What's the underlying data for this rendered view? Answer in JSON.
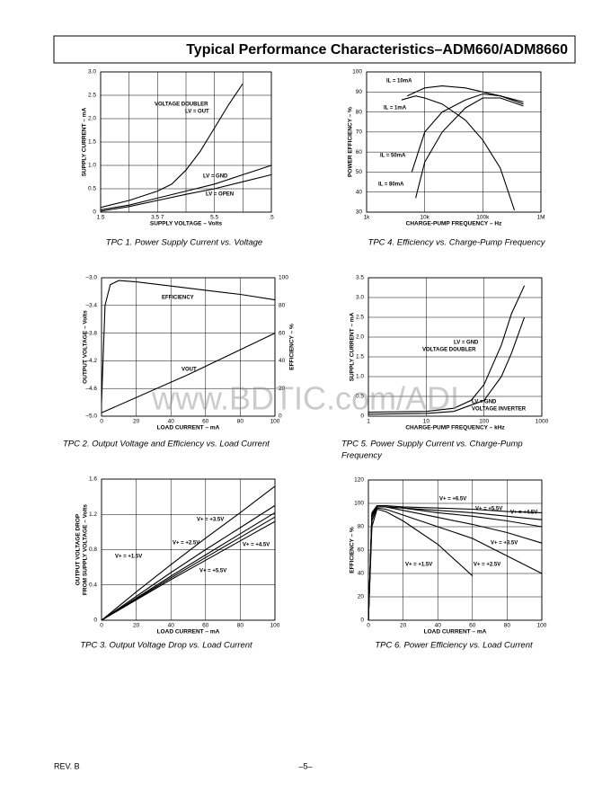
{
  "header": {
    "title": "Typical Performance Characteristics–ADM660/ADM8660"
  },
  "footer": {
    "revision": "REV. B",
    "page": "–5–"
  },
  "watermark": "www.BDTIC.com/ADI",
  "chart_data": [
    {
      "type": "line",
      "caption": [
        "TPC 1.  Power Supply Current vs. Voltage"
      ],
      "xlabel": "SUPPLY VOLTAGE – Volts",
      "ylabel": "SUPPLY CURRENT – mA",
      "color": "#000000",
      "grid": true,
      "xlim": [
        1.5,
        7.5
      ],
      "ylim": [
        0,
        3
      ],
      "xticks": [
        1.5,
        {
          "value": 3.5,
          "label": "3.5 7"
        },
        5.5,
        {
          "value": 7.5,
          "label": ".5"
        }
      ],
      "xminor": [
        2.5,
        4.5,
        6.5
      ],
      "yticks": [
        0,
        0.5,
        {
          "value": 1,
          "label": "1.0"
        },
        1.5,
        {
          "value": 2,
          "label": "2.0"
        },
        2.5,
        {
          "value": 3,
          "label": "3.0"
        }
      ],
      "annotations": [
        "VOLTAGE DOUBLER",
        "LV = OUT",
        "LV = GND",
        "LV = OPEN"
      ],
      "series": [
        {
          "x": [
            1.5,
            2.5,
            3.5,
            4,
            4.5,
            5,
            5.5,
            6,
            6.5
          ],
          "values": [
            0.1,
            0.25,
            0.45,
            0.6,
            0.9,
            1.3,
            1.8,
            2.3,
            2.75
          ]
        },
        {
          "x": [
            1.5,
            2.5,
            3.5,
            4.5,
            5.5,
            6.5,
            7.5
          ],
          "values": [
            0.05,
            0.15,
            0.3,
            0.45,
            0.6,
            0.8,
            1
          ]
        },
        {
          "x": [
            1.5,
            2.5,
            3.5,
            4.5,
            5.5,
            6.5,
            7.5
          ],
          "values": [
            0.02,
            0.12,
            0.25,
            0.38,
            0.5,
            0.65,
            0.8
          ]
        }
      ]
    },
    {
      "type": "line",
      "caption": [
        "TPC 2.  Output Voltage and Efficiency vs. Load Current"
      ],
      "xlabel": "LOAD CURRENT – mA",
      "ylabel": "OUTPUT VOLTAGE – Volts",
      "y2label": "EFFICIENCY – %",
      "color": "#000000",
      "grid": true,
      "xlim": [
        0,
        100
      ],
      "ylim": [
        -5,
        -3
      ],
      "y2lim": [
        0,
        100
      ],
      "xticks": [
        0,
        20,
        40,
        60,
        80,
        100
      ],
      "yticks": [
        {
          "value": -3,
          "label": "–3.0"
        },
        {
          "value": -3.4,
          "label": "–3.4"
        },
        {
          "value": -3.8,
          "label": "–3.8"
        },
        {
          "value": -4.2,
          "label": "–4.2"
        },
        {
          "value": -4.6,
          "label": "–4.6"
        },
        {
          "value": -5,
          "label": "–5.0"
        }
      ],
      "y2ticks": [
        0,
        20,
        40,
        60,
        80,
        100
      ],
      "annotations": [
        "EFFICIENCY",
        "VOUT"
      ],
      "series": [
        {
          "x": [
            0,
            2,
            5,
            10,
            20,
            40,
            60,
            80,
            100
          ],
          "values": [
            10,
            80,
            95,
            98,
            97,
            94,
            91,
            88,
            84
          ],
          "axis": "y2"
        },
        {
          "x": [
            0,
            50,
            100
          ],
          "values": [
            -4.95,
            -4.4,
            -3.8
          ]
        }
      ]
    },
    {
      "type": "line",
      "caption": [
        "TPC 3.  Output Voltage Drop vs. Load Current"
      ],
      "xlabel": "LOAD CURRENT – mA",
      "ylabel": [
        "OUTPUT VOLTAGE DROP",
        "FROM SUPPLY VOLTAGE – Volts"
      ],
      "color": "#000000",
      "grid": true,
      "xlim": [
        0,
        100
      ],
      "ylim": [
        0,
        1.6
      ],
      "xticks": [
        0,
        20,
        40,
        60,
        80,
        100
      ],
      "yticks": [
        0,
        0.4,
        0.8,
        1.2,
        1.6
      ],
      "annotations": [
        "V+ = +1.5V",
        "V+ = +2.5V",
        "V+ = +3.5V",
        "V+ = +4.5V",
        "V+ = +5.5V"
      ],
      "x": [
        0,
        20,
        40,
        60,
        80,
        100
      ],
      "series": [
        {
          "values": [
            0,
            0.32,
            0.63,
            0.93,
            1.22,
            1.52
          ]
        },
        {
          "values": [
            0,
            0.27,
            0.54,
            0.8,
            1.05,
            1.3
          ]
        },
        {
          "values": [
            0,
            0.25,
            0.5,
            0.74,
            0.98,
            1.22
          ]
        },
        {
          "values": [
            0,
            0.24,
            0.48,
            0.71,
            0.94,
            1.17
          ]
        },
        {
          "values": [
            0,
            0.23,
            0.46,
            0.68,
            0.9,
            1.12
          ]
        }
      ]
    },
    {
      "type": "line",
      "caption": [
        "TPC 4.  Efficiency vs. Charge-Pump Frequency"
      ],
      "xlabel": "CHARGE-PUMP FREQUENCY – Hz",
      "ylabel": "POWER EFFICIENCY – %",
      "color": "#000000",
      "grid": true,
      "xlog": true,
      "xlim": [
        1000,
        1000000
      ],
      "ylim": [
        30,
        100
      ],
      "xticks": [
        {
          "value": 1000,
          "label": "1k"
        },
        {
          "value": 10000,
          "label": "10k"
        },
        {
          "value": 100000,
          "label": "100k"
        },
        {
          "value": 1000000,
          "label": "1M"
        }
      ],
      "yticks": [
        30,
        40,
        50,
        60,
        70,
        80,
        90,
        100
      ],
      "annotations": [
        "IL = 10mA",
        "IL = 1mA",
        "IL = 50mA",
        "IL = 80mA"
      ],
      "series": [
        {
          "x": [
            5000,
            10000,
            20000,
            50000,
            100000,
            200000,
            500000
          ],
          "values": [
            88,
            92,
            93,
            92,
            90,
            88,
            85
          ]
        },
        {
          "x": [
            4000,
            7000,
            10000,
            20000,
            50000,
            100000,
            200000,
            350000
          ],
          "values": [
            86,
            88,
            87,
            84,
            76,
            66,
            52,
            31
          ]
        },
        {
          "x": [
            6000,
            10000,
            20000,
            50000,
            100000,
            200000,
            500000
          ],
          "values": [
            50,
            70,
            80,
            86,
            89,
            88,
            84
          ]
        },
        {
          "x": [
            7000,
            10000,
            20000,
            50000,
            100000,
            200000,
            500000
          ],
          "values": [
            37,
            55,
            70,
            82,
            87,
            87,
            83
          ]
        }
      ]
    },
    {
      "type": "line",
      "caption": [
        "TPC 5.  Power Supply Current vs. Charge-Pump",
        "Frequency"
      ],
      "xlabel": "CHARGE-PUMP FREQUENCY – kHz",
      "ylabel": "SUPPLY CURRENT – mA",
      "color": "#000000",
      "grid": true,
      "xlog": true,
      "xlim": [
        1,
        1000
      ],
      "ylim": [
        0,
        3.5
      ],
      "xticks": [
        1,
        10,
        100,
        1000
      ],
      "yticks": [
        0,
        0.5,
        {
          "value": 1,
          "label": "1.0"
        },
        1.5,
        {
          "value": 2,
          "label": "2.0"
        },
        2.5,
        {
          "value": 3,
          "label": "3.0"
        },
        3.5
      ],
      "annotations": [
        "LV = GND",
        "VOLTAGE DOUBLER",
        "LV = GND",
        "VOLTAGE INVERTER"
      ],
      "series": [
        {
          "x": [
            1,
            10,
            30,
            60,
            100,
            200,
            300,
            500
          ],
          "values": [
            0.1,
            0.12,
            0.2,
            0.4,
            0.8,
            1.8,
            2.6,
            3.3
          ]
        },
        {
          "x": [
            1,
            10,
            30,
            100,
            200,
            300,
            500
          ],
          "values": [
            0.05,
            0.07,
            0.12,
            0.4,
            1,
            1.6,
            2.5
          ]
        }
      ]
    },
    {
      "type": "line",
      "caption": [
        "TPC 6.  Power Efficiency vs. Load Current"
      ],
      "xlabel": "LOAD CURRENT – mA",
      "ylabel": "EFFICIENCY – %",
      "color": "#000000",
      "grid": true,
      "xlim": [
        0,
        100
      ],
      "ylim": [
        0,
        120
      ],
      "xticks": [
        0,
        20,
        40,
        60,
        80,
        100
      ],
      "yticks": [
        0,
        20,
        40,
        60,
        80,
        100,
        120
      ],
      "annotations": [
        "V+ = +6.5V",
        "V+ = +5.5V",
        "V+ = +4.5V",
        "V+ = +3.5V",
        "V+ = +1.5V",
        "V+ = +2.5V"
      ],
      "x": [
        0,
        2,
        5,
        10,
        20,
        40,
        60,
        80,
        100
      ],
      "series": [
        {
          "values": [
            0,
            92,
            98,
            98,
            97,
            96,
            95,
            93,
            92
          ]
        },
        {
          "values": [
            0,
            91,
            97,
            97,
            96,
            94,
            92,
            89,
            86
          ]
        },
        {
          "values": [
            0,
            90,
            97,
            97,
            96,
            92,
            89,
            85,
            80
          ]
        },
        {
          "values": [
            0,
            88,
            97,
            97,
            94,
            88,
            82,
            75,
            66
          ]
        },
        {
          "values": [
            0,
            80,
            95,
            93,
            85,
            65,
            38,
            null,
            null
          ]
        },
        {
          "values": [
            0,
            85,
            96,
            95,
            90,
            80,
            70,
            55,
            40
          ]
        }
      ]
    }
  ]
}
